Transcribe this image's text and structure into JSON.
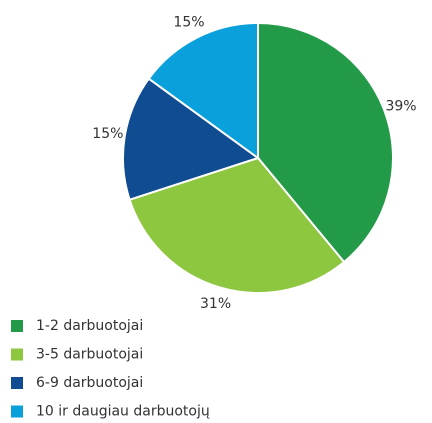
{
  "chart_data": {
    "type": "pie",
    "categories": [
      "1-2 darbuotojai",
      "3-5 darbuotojai",
      "6-9 darbuotojai",
      "10 ir daugiau darbuotojų"
    ],
    "values": [
      39,
      31,
      15,
      15
    ],
    "value_labels": [
      "39%",
      "31%",
      "15%",
      "15%"
    ],
    "colors": [
      "#239a48",
      "#8dc63f",
      "#0f4c91",
      "#0aa0dc"
    ],
    "legend": "bottom-left"
  }
}
